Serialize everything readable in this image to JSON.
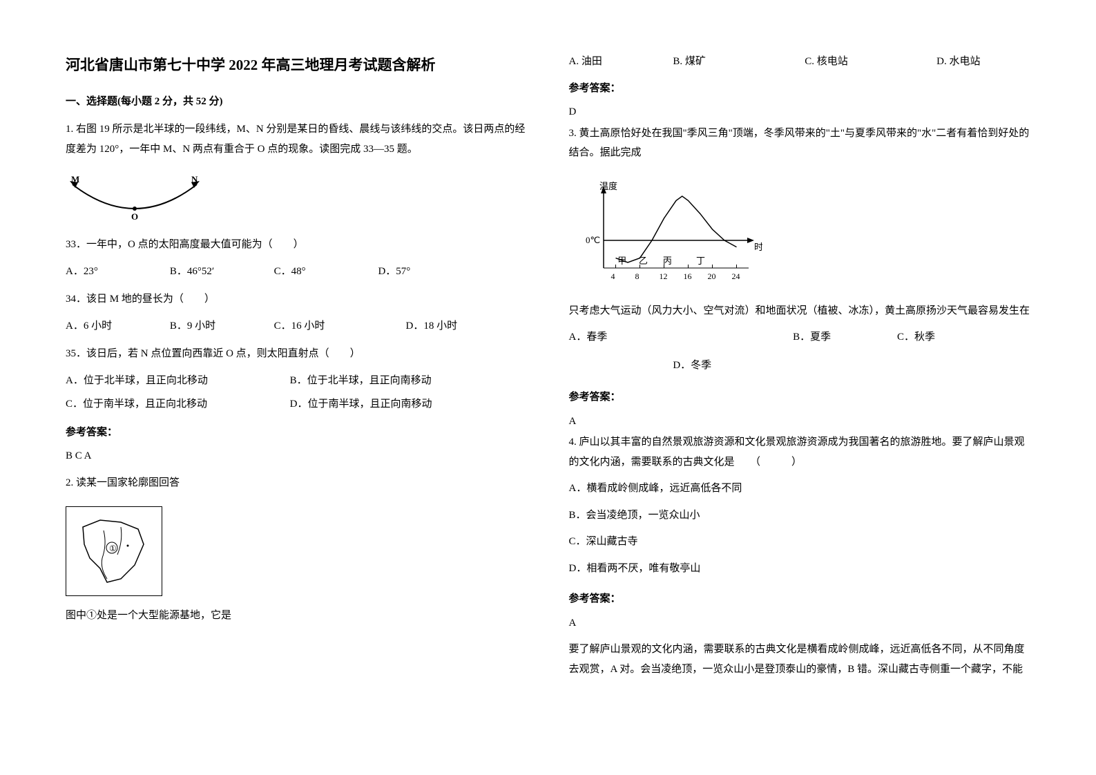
{
  "title": "河北省唐山市第七十中学 2022 年高三地理月考试题含解析",
  "section1": "一、选择题(每小题 2 分，共 52 分)",
  "q1": {
    "stem": "1. 右图 19 所示是北半球的一段纬线，M、N 分别是某日的昏线、晨线与该纬线的交点。该日两点的经度差为 120°，一年中 M、N 两点有重合于 O 点的现象。读图完成 33—35 题。",
    "sub33": "33．一年中，O 点的太阳高度最大值可能为（　　）",
    "sub33_opts": {
      "a": "A．23°",
      "b": "B．46°52′",
      "c": "C．48°",
      "d": "D．57°"
    },
    "sub34": "34．该日 M 地的昼长为（　　）",
    "sub34_opts": {
      "a": "A．6 小时",
      "b": "B．9 小时",
      "c": "C．16 小时",
      "d": "D．18 小时"
    },
    "sub35": "35．该日后，若 N 点位置向西靠近 O 点，则太阳直射点（　　）",
    "sub35_opts": {
      "a": "A．位于北半球，且正向北移动",
      "b": "B．位于北半球，且正向南移动",
      "c": "C．位于南半球，且正向北移动",
      "d": "D．位于南半球，且正向南移动"
    },
    "ans_head": "参考答案：",
    "ans": "B  C  A"
  },
  "q2": {
    "stem": "2. 读某一国家轮廓图回答",
    "sub": "图中①处是一个大型能源基地，它是",
    "opts": {
      "a": "A. 油田",
      "b": "B. 煤矿",
      "c": "C. 核电站",
      "d": "D. 水电站"
    },
    "ans_head": "参考答案：",
    "ans": "D"
  },
  "q3": {
    "stem": "3. 黄土高原恰好处在我国\"季风三角\"顶端，冬季风带来的\"土\"与夏季风带来的\"水\"二者有着恰到好处的结合。据此完成",
    "sub": "只考虑大气运动（风力大小、空气对流）和地面状况（植被、冰冻），黄土高原扬沙天气最容易发生在",
    "opts": {
      "a": "A．春季",
      "b": "B．夏季",
      "c": "C．秋季",
      "d": "D．冬季"
    },
    "ans_head": "参考答案：",
    "ans": "A",
    "chart": {
      "type": "line",
      "x_axis_label": "时",
      "y_axis_label": "温度",
      "zero_label": "0℃",
      "x_ticks": [
        4,
        8,
        12,
        16,
        20,
        24
      ],
      "intervals": [
        "甲",
        "乙",
        "丙",
        "丁"
      ],
      "interval_positions": [
        5,
        8.5,
        12.5,
        18
      ],
      "curve": [
        {
          "x": 4,
          "y": -1.6
        },
        {
          "x": 6,
          "y": -2.0
        },
        {
          "x": 8,
          "y": -1.6
        },
        {
          "x": 10,
          "y": 0
        },
        {
          "x": 12,
          "y": 2.0
        },
        {
          "x": 14,
          "y": 3.6
        },
        {
          "x": 15,
          "y": 4.0
        },
        {
          "x": 16,
          "y": 3.6
        },
        {
          "x": 18,
          "y": 2.4
        },
        {
          "x": 20,
          "y": 1.0
        },
        {
          "x": 22,
          "y": 0
        },
        {
          "x": 24,
          "y": -0.6
        }
      ],
      "y_range": [
        -2.5,
        4.5
      ],
      "x_range": [
        2,
        26
      ],
      "axis_color": "#000000",
      "curve_color": "#000000",
      "background": "#ffffff",
      "stroke_width": 1.5
    }
  },
  "q4": {
    "stem": "4. 庐山以其丰富的自然景观旅游资源和文化景观旅游资源成为我国著名的旅游胜地。要了解庐山景观的文化内涵，需要联系的古典文化是　　（　　　）",
    "opts": {
      "a": "A．横看成岭侧成峰，远近高低各不同",
      "b": "B．会当凌绝顶，一览众山小",
      "c": "C．深山藏古寺",
      "d": "D．相看两不厌，唯有敬亭山"
    },
    "ans_head": "参考答案：",
    "ans": "A",
    "expl": "要了解庐山景观的文化内涵，需要联系的古典文化是横看成岭侧成峰，远近高低各不同，从不同角度去观赏，A 对。会当凌绝顶，一览众山小是登顶泰山的豪情，B 错。深山藏古寺侧重一个藏字，不能"
  },
  "fig1": {
    "type": "arc",
    "labels": {
      "M": "M",
      "N": "N",
      "O": "O"
    },
    "stroke": "#000000",
    "bg": "#ffffff"
  }
}
